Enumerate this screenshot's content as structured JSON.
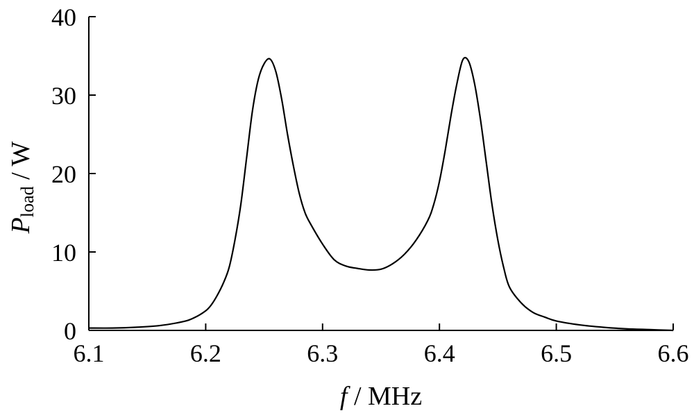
{
  "chart_data": {
    "type": "line",
    "title": "",
    "xlabel": {
      "symbol": "f",
      "unit": " / MHz"
    },
    "ylabel": {
      "symbol": "P",
      "subscript": "load",
      "unit": " / W"
    },
    "xlim": [
      6.1,
      6.6
    ],
    "ylim": [
      0,
      40
    ],
    "xticks": [
      6.1,
      6.2,
      6.3,
      6.4,
      6.5,
      6.6
    ],
    "xtick_labels": [
      "6.1",
      "6.2",
      "6.3",
      "6.4",
      "6.5",
      "6.6"
    ],
    "yticks": [
      0,
      10,
      20,
      30,
      40
    ],
    "ytick_labels": [
      "0",
      "10",
      "20",
      "30",
      "40"
    ],
    "grid": false,
    "legend": "none",
    "series": [
      {
        "color": "#000000",
        "x": [
          6.1,
          6.12,
          6.14,
          6.16,
          6.18,
          6.19,
          6.2,
          6.205,
          6.21,
          6.215,
          6.22,
          6.225,
          6.23,
          6.235,
          6.24,
          6.245,
          6.25,
          6.255,
          6.26,
          6.265,
          6.27,
          6.275,
          6.28,
          6.285,
          6.29,
          6.3,
          6.31,
          6.32,
          6.33,
          6.34,
          6.35,
          6.36,
          6.37,
          6.38,
          6.39,
          6.395,
          6.4,
          6.405,
          6.41,
          6.415,
          6.42,
          6.425,
          6.43,
          6.435,
          6.44,
          6.445,
          6.45,
          6.455,
          6.46,
          6.47,
          6.48,
          6.49,
          6.5,
          6.52,
          6.54,
          6.56,
          6.58,
          6.6
        ],
        "y": [
          0.3,
          0.3,
          0.4,
          0.6,
          1.1,
          1.6,
          2.5,
          3.3,
          4.5,
          6.0,
          8.0,
          11.5,
          16.0,
          22.0,
          28.0,
          32.0,
          34.0,
          34.6,
          33.0,
          29.5,
          25.0,
          21.0,
          17.5,
          15.0,
          13.5,
          11.0,
          9.0,
          8.2,
          7.9,
          7.7,
          7.8,
          8.5,
          9.7,
          11.5,
          14.0,
          16.0,
          19.0,
          23.0,
          27.5,
          31.5,
          34.5,
          34.3,
          31.5,
          27.0,
          21.5,
          16.0,
          11.5,
          8.0,
          5.5,
          3.5,
          2.3,
          1.7,
          1.2,
          0.7,
          0.4,
          0.2,
          0.1,
          0.0
        ]
      }
    ]
  }
}
